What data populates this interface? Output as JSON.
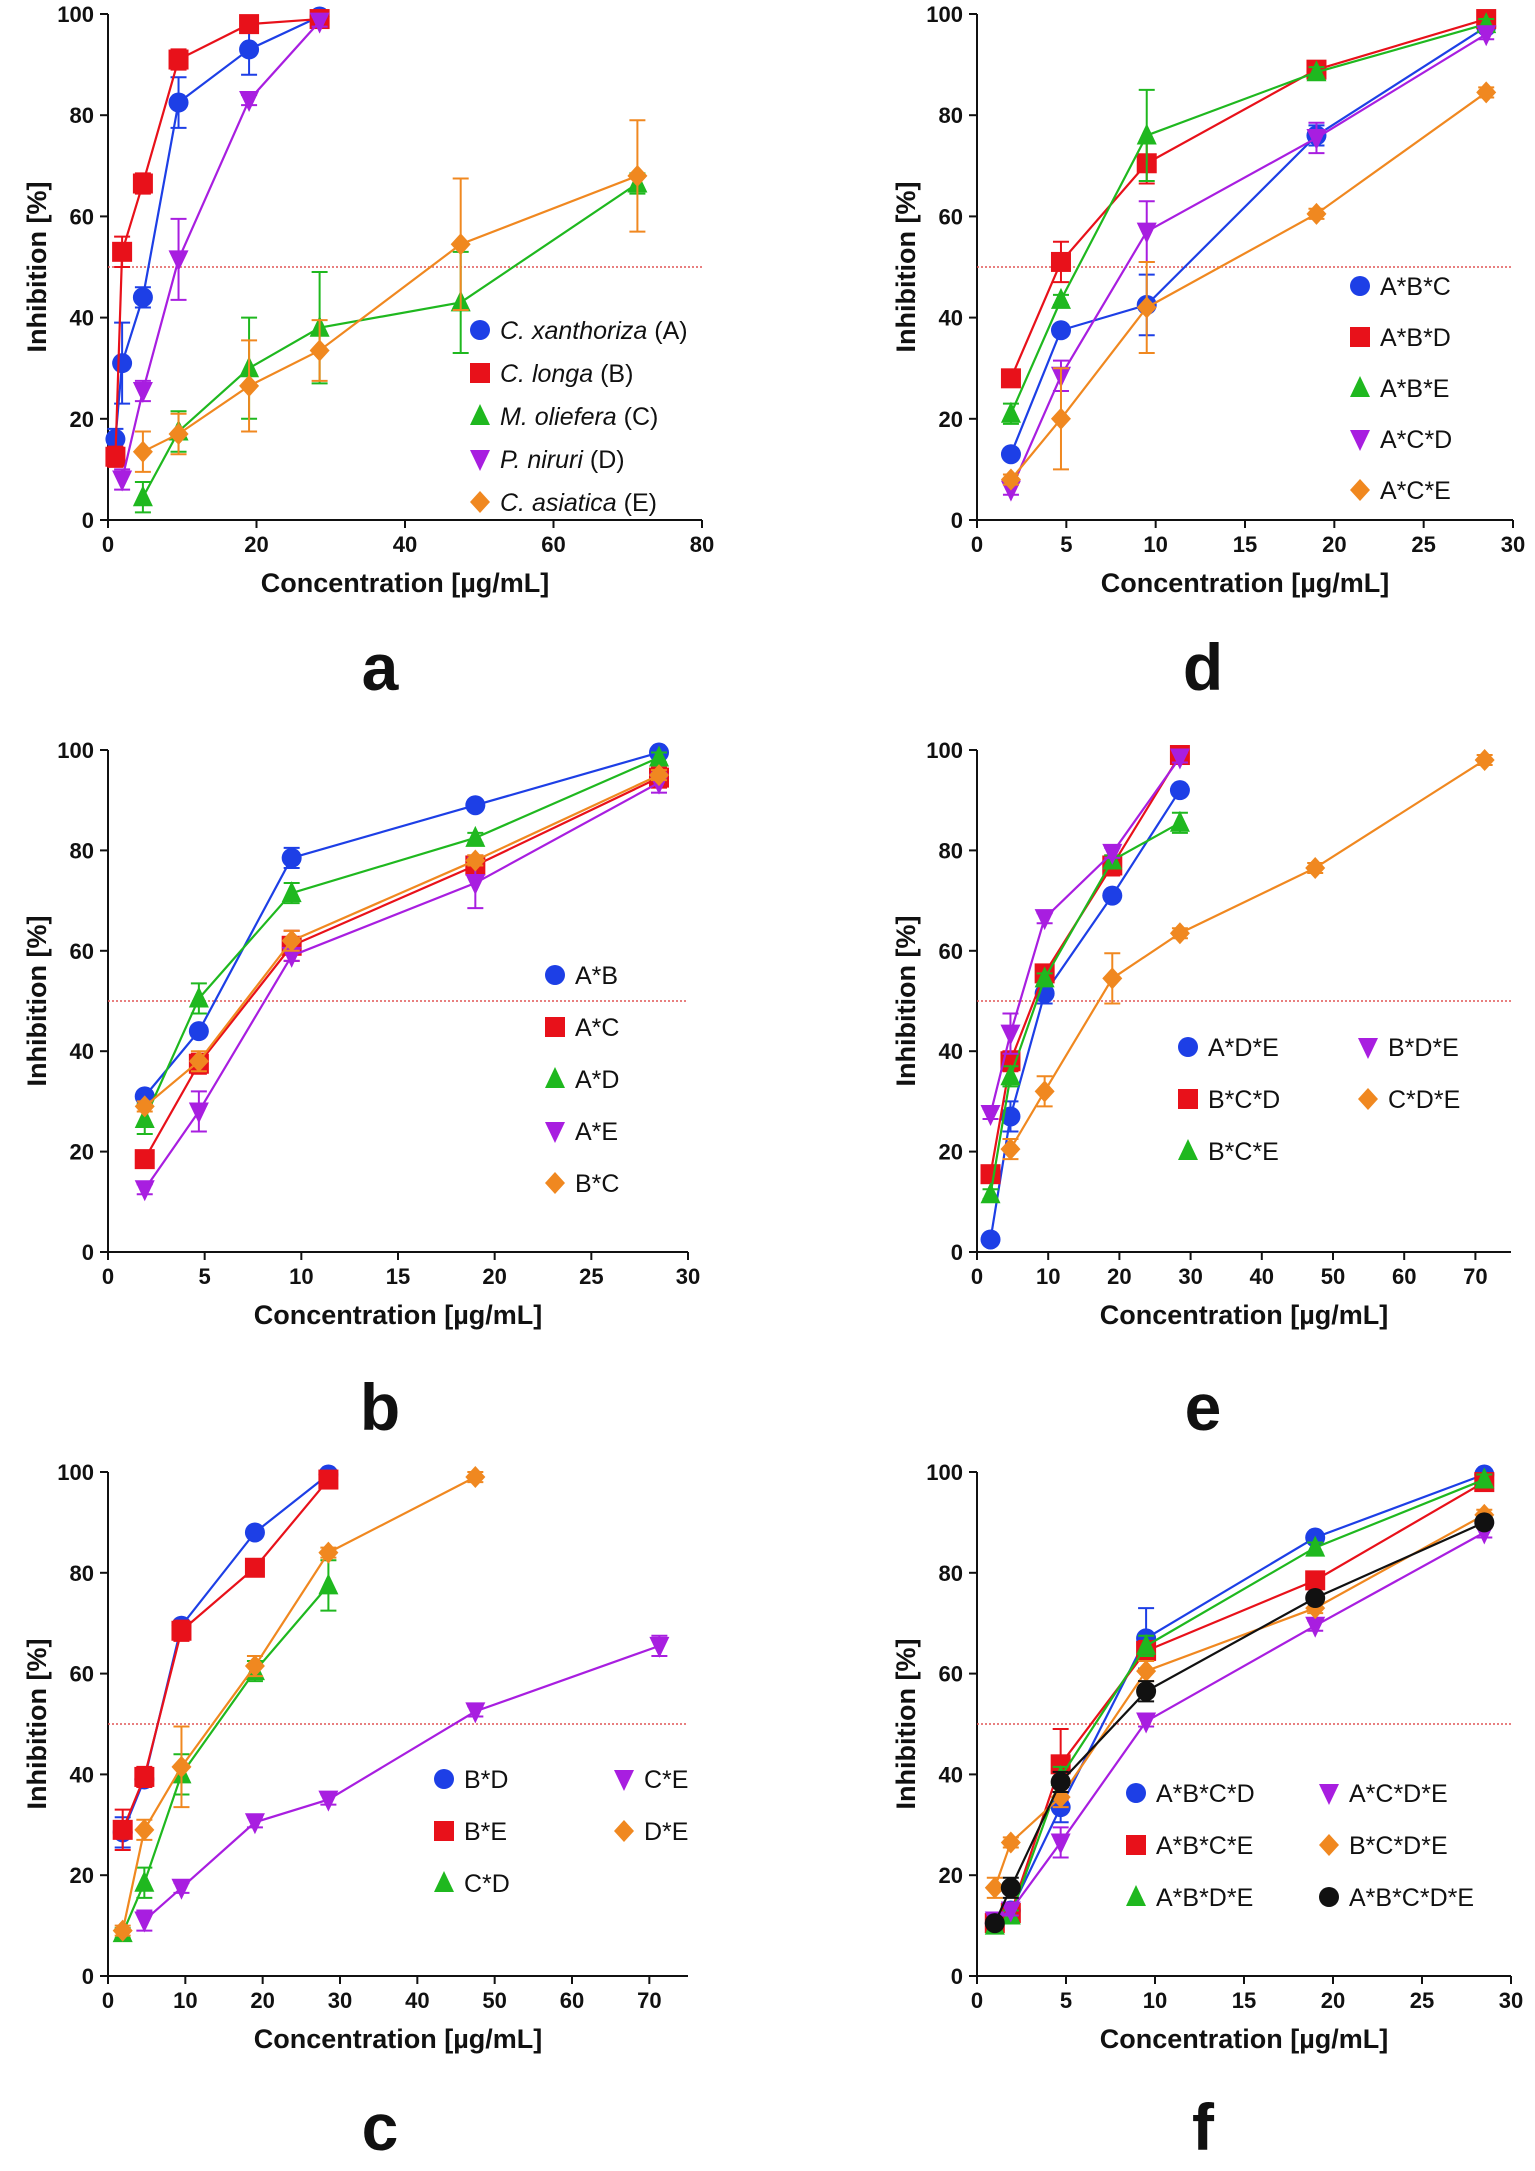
{
  "colors": {
    "blue": "#1d3fe6",
    "red": "#e8111a",
    "green": "#1fb81f",
    "purple": "#a81ee0",
    "orange": "#f08820",
    "black": "#111111",
    "threshold": "#e05555"
  },
  "chart_data": [
    {
      "panel": "a",
      "type": "line",
      "threshold": 50,
      "xlabel": "Concentration [µg/mL]",
      "ylabel": "Inhibition [%]",
      "xlim": [
        0,
        80
      ],
      "ylim": [
        0,
        100
      ],
      "xticks": [
        0,
        20,
        40,
        60,
        80
      ],
      "yticks": [
        0,
        20,
        40,
        60,
        80,
        100
      ],
      "legend_position": "center-right",
      "legend_columns": 1,
      "series": [
        {
          "name": "C. xanthoriza",
          "suffix": " (A)",
          "italic": true,
          "color": "blue",
          "marker": "circle",
          "x": [
            1.0,
            1.9,
            4.7,
            9.5,
            19,
            28.5
          ],
          "y": [
            16,
            31,
            44,
            82.5,
            93,
            99.5
          ],
          "err": [
            2,
            8,
            2,
            5,
            5,
            1
          ]
        },
        {
          "name": "C. longa",
          "suffix": " (B)",
          "italic": true,
          "color": "red",
          "marker": "square",
          "x": [
            1.0,
            1.9,
            4.7,
            9.5,
            19,
            28.5
          ],
          "y": [
            12.5,
            53,
            66.5,
            91,
            98,
            99
          ],
          "err": [
            2,
            3,
            2,
            2,
            1,
            1
          ]
        },
        {
          "name": "M. oliefera",
          "suffix": " (C)",
          "italic": true,
          "color": "green",
          "marker": "triangle",
          "x": [
            4.7,
            9.5,
            19,
            28.5,
            47.5,
            71.3
          ],
          "y": [
            4.5,
            17.5,
            30,
            38,
            43,
            66.5
          ],
          "err": [
            3,
            4,
            10,
            11,
            10,
            2
          ]
        },
        {
          "name": "P. niruri",
          "suffix": " (D)",
          "italic": true,
          "color": "purple",
          "marker": "tri-down",
          "x": [
            1.9,
            4.7,
            9.5,
            19,
            28.5
          ],
          "y": [
            8,
            25.5,
            51.5,
            83,
            98.5
          ],
          "err": [
            2,
            2,
            8,
            1,
            1
          ]
        },
        {
          "name": "C. asiatica",
          "suffix": " (E)",
          "italic": true,
          "color": "orange",
          "marker": "diamond",
          "x": [
            4.7,
            9.5,
            19,
            28.5,
            47.5,
            71.3
          ],
          "y": [
            13.5,
            17,
            26.5,
            33.5,
            54.5,
            68
          ],
          "err": [
            4,
            4,
            9,
            6,
            13,
            11
          ]
        }
      ]
    },
    {
      "panel": "d",
      "type": "line",
      "threshold": 50,
      "xlabel": "Concentration [µg/mL]",
      "ylabel": "Inhibition [%]",
      "xlim": [
        0,
        30
      ],
      "ylim": [
        0,
        100
      ],
      "xticks": [
        0,
        5,
        10,
        15,
        20,
        25,
        30
      ],
      "yticks": [
        0,
        20,
        40,
        60,
        80,
        100
      ],
      "legend_position": "center-right",
      "legend_columns": 1,
      "series": [
        {
          "name": "A*B*C",
          "color": "blue",
          "marker": "circle",
          "x": [
            1.9,
            4.7,
            9.5,
            19,
            28.5
          ],
          "y": [
            13,
            37.5,
            42.5,
            76,
            97.5
          ],
          "err": [
            1,
            1,
            6,
            2,
            1
          ]
        },
        {
          "name": "A*B*D",
          "color": "red",
          "marker": "square",
          "x": [
            1.9,
            4.7,
            9.5,
            19,
            28.5
          ],
          "y": [
            28,
            51,
            70.5,
            89,
            99
          ],
          "err": [
            1,
            4,
            4,
            1,
            1
          ]
        },
        {
          "name": "A*B*E",
          "color": "green",
          "marker": "triangle",
          "x": [
            1.9,
            4.7,
            9.5,
            19,
            28.5
          ],
          "y": [
            21,
            43.5,
            76,
            88.5,
            98
          ],
          "err": [
            2,
            1,
            9,
            1,
            1
          ]
        },
        {
          "name": "A*C*D",
          "color": "purple",
          "marker": "tri-down",
          "x": [
            1.9,
            4.7,
            9.5,
            19,
            28.5
          ],
          "y": [
            6,
            28.5,
            57,
            75.5,
            96
          ],
          "err": [
            1,
            3,
            6,
            3,
            1
          ]
        },
        {
          "name": "A*C*E",
          "color": "orange",
          "marker": "diamond",
          "x": [
            1.9,
            4.7,
            9.5,
            19,
            28.5
          ],
          "y": [
            8,
            20,
            42,
            60.5,
            84.5
          ],
          "err": [
            1,
            10,
            9,
            1,
            1
          ]
        }
      ]
    },
    {
      "panel": "b",
      "type": "line",
      "threshold": 50,
      "xlabel": "Concentration [µg/mL]",
      "ylabel": "Inhibition [%]",
      "xlim": [
        0,
        30
      ],
      "ylim": [
        0,
        100
      ],
      "xticks": [
        0,
        5,
        10,
        15,
        20,
        25,
        30
      ],
      "yticks": [
        0,
        20,
        40,
        60,
        80,
        100
      ],
      "legend_position": "center-right",
      "legend_columns": 1,
      "series": [
        {
          "name": "A*B",
          "color": "blue",
          "marker": "circle",
          "x": [
            1.9,
            4.7,
            9.5,
            19,
            28.5
          ],
          "y": [
            31,
            44,
            78.5,
            89,
            99.5
          ],
          "err": [
            1,
            1,
            2,
            1,
            1
          ]
        },
        {
          "name": "A*C",
          "color": "red",
          "marker": "square",
          "x": [
            1.9,
            4.7,
            9.5,
            19,
            28.5
          ],
          "y": [
            18.5,
            37.5,
            61,
            77,
            94.5
          ],
          "err": [
            1,
            2,
            3,
            2,
            2
          ]
        },
        {
          "name": "A*D",
          "color": "green",
          "marker": "triangle",
          "x": [
            1.9,
            4.7,
            9.5,
            19,
            28.5
          ],
          "y": [
            26.5,
            50.5,
            71.5,
            82.5,
            98.5
          ],
          "err": [
            3,
            3,
            2,
            1,
            1
          ]
        },
        {
          "name": "A*E",
          "color": "purple",
          "marker": "tri-down",
          "x": [
            1.9,
            4.7,
            9.5,
            19,
            28.5
          ],
          "y": [
            12.5,
            28,
            59,
            73.5,
            93.5
          ],
          "err": [
            1,
            4,
            1,
            5,
            2
          ]
        },
        {
          "name": "B*C",
          "color": "orange",
          "marker": "diamond",
          "x": [
            1.9,
            4.7,
            9.5,
            19,
            28.5
          ],
          "y": [
            29,
            38,
            62,
            78,
            95
          ],
          "err": [
            1,
            2,
            2,
            1,
            1
          ]
        }
      ]
    },
    {
      "panel": "e",
      "type": "line",
      "threshold": 50,
      "xlabel": "Concentration [µg/mL]",
      "ylabel": "Inhibition [%]",
      "xlim": [
        0,
        75
      ],
      "ylim": [
        0,
        100
      ],
      "xticks": [
        0,
        10,
        20,
        30,
        40,
        50,
        60,
        70
      ],
      "yticks": [
        0,
        20,
        40,
        60,
        80,
        100
      ],
      "legend_position": "center",
      "legend_columns": 2,
      "series": [
        {
          "name": "A*D*E",
          "color": "blue",
          "marker": "circle",
          "x": [
            1.9,
            4.7,
            9.5,
            19,
            28.5
          ],
          "y": [
            2.5,
            27,
            51.5,
            71,
            92
          ],
          "err": [
            1,
            3,
            2,
            1,
            1
          ]
        },
        {
          "name": "B*C*D",
          "color": "red",
          "marker": "square",
          "x": [
            1.9,
            4.7,
            9.5,
            19,
            28.5
          ],
          "y": [
            15.5,
            38,
            55.5,
            77,
            99
          ],
          "err": [
            1,
            2,
            1,
            2,
            1
          ]
        },
        {
          "name": "B*C*E",
          "color": "green",
          "marker": "triangle",
          "x": [
            1.9,
            4.7,
            9.5,
            19,
            28.5
          ],
          "y": [
            11.5,
            35,
            54.5,
            78,
            85.5
          ],
          "err": [
            1,
            2,
            1,
            1,
            2
          ]
        },
        {
          "name": "B*D*E",
          "color": "purple",
          "marker": "tri-down",
          "x": [
            1.9,
            4.7,
            9.5,
            19,
            28.5
          ],
          "y": [
            27.5,
            43.5,
            66.5,
            79.5,
            98.5
          ],
          "err": [
            1,
            4,
            1,
            1,
            1
          ]
        },
        {
          "name": "C*D*E",
          "color": "orange",
          "marker": "diamond",
          "x": [
            4.7,
            9.5,
            19,
            28.5,
            47.5,
            71.3
          ],
          "y": [
            20.5,
            32,
            54.5,
            63.5,
            76.5,
            98
          ],
          "err": [
            2,
            3,
            5,
            1,
            1,
            1
          ]
        }
      ]
    },
    {
      "panel": "c",
      "type": "line",
      "threshold": 50,
      "xlabel": "Concentration [µg/mL]",
      "ylabel": "Inhibition [%]",
      "xlim": [
        0,
        75
      ],
      "ylim": [
        0,
        100
      ],
      "xticks": [
        0,
        10,
        20,
        30,
        40,
        50,
        60,
        70
      ],
      "yticks": [
        0,
        20,
        40,
        60,
        80,
        100
      ],
      "legend_position": "bottom-right",
      "legend_columns": 2,
      "series": [
        {
          "name": "B*D",
          "color": "blue",
          "marker": "circle",
          "x": [
            1.9,
            4.7,
            9.5,
            19,
            28.5
          ],
          "y": [
            28.5,
            39,
            69.5,
            88,
            99.5
          ],
          "err": [
            3,
            1,
            1,
            1,
            1
          ]
        },
        {
          "name": "B*E",
          "color": "red",
          "marker": "square",
          "x": [
            1.9,
            4.7,
            9.5,
            19,
            28.5
          ],
          "y": [
            29,
            39.5,
            68.5,
            81,
            98.5
          ],
          "err": [
            4,
            2,
            2,
            1,
            1
          ]
        },
        {
          "name": "C*D",
          "color": "green",
          "marker": "triangle",
          "x": [
            1.9,
            4.7,
            9.5,
            19,
            28.5
          ],
          "y": [
            8.5,
            18.5,
            40,
            60.5,
            77.5
          ],
          "err": [
            1,
            3,
            4,
            2,
            5
          ]
        },
        {
          "name": "C*E",
          "color": "purple",
          "marker": "tri-down",
          "x": [
            4.7,
            9.5,
            19,
            28.5,
            47.5,
            71.3
          ],
          "y": [
            11,
            17.5,
            30.5,
            35,
            52.5,
            65.5
          ],
          "err": [
            2,
            1,
            1,
            1,
            1,
            2
          ]
        },
        {
          "name": "D*E",
          "color": "orange",
          "marker": "diamond",
          "x": [
            1.9,
            4.7,
            9.5,
            19,
            28.5,
            47.5
          ],
          "y": [
            9,
            29,
            41.5,
            61.5,
            84,
            99
          ],
          "err": [
            1,
            2,
            8,
            2,
            1,
            1
          ]
        }
      ]
    },
    {
      "panel": "f",
      "type": "line",
      "threshold": 50,
      "xlabel": "Concentration [µg/mL]",
      "ylabel": "Inhibition [%]",
      "xlim": [
        0,
        30
      ],
      "ylim": [
        0,
        100
      ],
      "xticks": [
        0,
        5,
        10,
        15,
        20,
        25,
        30
      ],
      "yticks": [
        0,
        20,
        40,
        60,
        80,
        100
      ],
      "legend_position": "bottom-right",
      "legend_columns": 2,
      "series": [
        {
          "name": "A*B*C*D",
          "color": "blue",
          "marker": "circle",
          "x": [
            1.0,
            1.9,
            4.7,
            9.5,
            19,
            28.5
          ],
          "y": [
            10.5,
            13,
            33.5,
            67,
            87,
            99.5
          ],
          "err": [
            1,
            1,
            3,
            6,
            1,
            1
          ]
        },
        {
          "name": "A*B*C*E",
          "color": "red",
          "marker": "square",
          "x": [
            1.0,
            1.9,
            4.7,
            9.5,
            19,
            28.5
          ],
          "y": [
            10.5,
            12.5,
            42,
            64.5,
            78.5,
            98
          ],
          "err": [
            1,
            1,
            7,
            2,
            1,
            1
          ]
        },
        {
          "name": "A*B*D*E",
          "color": "green",
          "marker": "triangle",
          "x": [
            1.0,
            1.9,
            4.7,
            9.5,
            19,
            28.5
          ],
          "y": [
            10,
            12,
            39.5,
            65.5,
            85,
            98.5
          ],
          "err": [
            1,
            1,
            2,
            2,
            1,
            1
          ]
        },
        {
          "name": "A*C*D*E",
          "color": "purple",
          "marker": "tri-down",
          "x": [
            1.0,
            1.9,
            4.7,
            9.5,
            19,
            28.5
          ],
          "y": [
            11,
            13,
            26.5,
            50.5,
            69.5,
            88
          ],
          "err": [
            1,
            1,
            3,
            1,
            1,
            1
          ]
        },
        {
          "name": "B*C*D*E",
          "color": "orange",
          "marker": "diamond",
          "x": [
            1.0,
            1.9,
            4.7,
            9.5,
            19,
            28.5
          ],
          "y": [
            17.5,
            26.5,
            35.5,
            60.5,
            73,
            91.5
          ],
          "err": [
            2,
            1,
            2,
            2,
            1,
            1
          ]
        },
        {
          "name": "A*B*C*D*E",
          "color": "black",
          "marker": "circle",
          "x": [
            1.0,
            1.9,
            4.7,
            9.5,
            19,
            28.5
          ],
          "y": [
            10.5,
            17.5,
            38.5,
            56.5,
            75,
            90
          ],
          "err": [
            1,
            2,
            2,
            2,
            1,
            1
          ]
        }
      ]
    }
  ]
}
